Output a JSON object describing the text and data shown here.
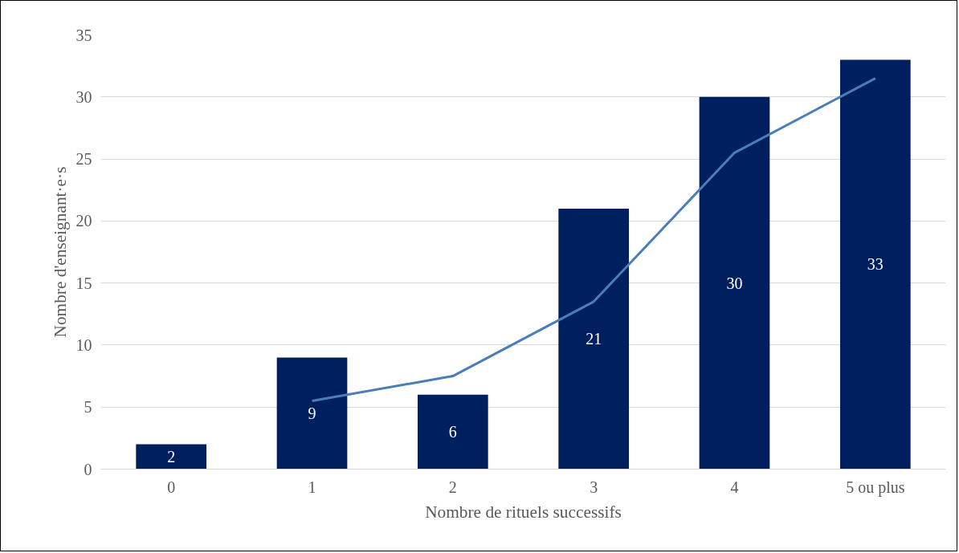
{
  "chart_data": {
    "type": "bar",
    "xlabel": "Nombre de rituels successifs",
    "ylabel": "Nombre d'enseignant·e·s",
    "categories": [
      "0",
      "1",
      "2",
      "3",
      "4",
      "5 ou plus"
    ],
    "series": [
      {
        "color": "#001f5f",
        "values": [
          2,
          9,
          6,
          21,
          30,
          33
        ],
        "value_labels": [
          "2",
          "9",
          "6",
          "21",
          "30",
          "33"
        ]
      },
      {
        "type": "line",
        "color": "#4a7ebb",
        "values": [
          null,
          5.5,
          7.5,
          13.5,
          25.5,
          31.5
        ]
      }
    ],
    "ylim": [
      0,
      35
    ],
    "yticks": [
      0,
      5,
      10,
      15,
      20,
      25,
      30,
      35
    ],
    "grid": "y"
  }
}
